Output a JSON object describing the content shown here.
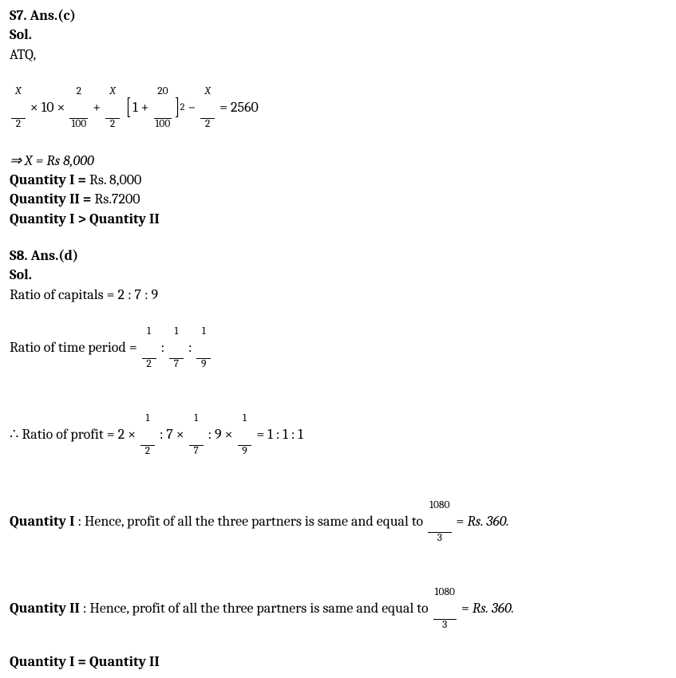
{
  "s7": {
    "heading": "S7. Ans.(c)",
    "sol_label": "Sol.",
    "atq": "ATQ,",
    "eq": {
      "X": "X",
      "two": "2",
      "times10": " × 10 × ",
      "hundred": "100",
      "plus": " + ",
      "open_br": "[",
      "one_plus": "1 + ",
      "twenty": "20",
      "close_br": "]",
      "exp2": "2",
      "minus": " − ",
      "equals": " = 2560"
    },
    "result_line": "⇒ X = Rs 8,000",
    "q1_label": "Quantity I = ",
    "q1_val": "Rs. 8,000",
    "q2_label": "Quantity II = ",
    "q2_val": "Rs.7200",
    "compare": "Quantity I > Quantity II"
  },
  "s8": {
    "heading": "S8. Ans.(d)",
    "sol_label": "Sol.",
    "ratio_capitals": "Ratio of capitals = 2 : 7 : 9",
    "ratio_time_label": "Ratio of time period = ",
    "one": "1",
    "d2": "2",
    "d7": "7",
    "d9": "9",
    "colon": " : ",
    "ratio_profit_label": "∴ Ratio of profit = 2 × ",
    "seven_times": " : 7 × ",
    "nine_times": " : 9 × ",
    "profit_result": " = 1 : 1 : 1",
    "q1_label": "Quantity I",
    "q1_text": " : Hence, profit of all the three partners is same and equal to ",
    "q2_label": "Quantity II",
    "q2_text": " : Hence, profit of all the three partners is same and equal to ",
    "frac_num": "1080",
    "frac_den": "3",
    "eq_rs": " = ",
    "rs360": "Rs. 360.",
    "compare": "Quantity I = Quantity II"
  }
}
